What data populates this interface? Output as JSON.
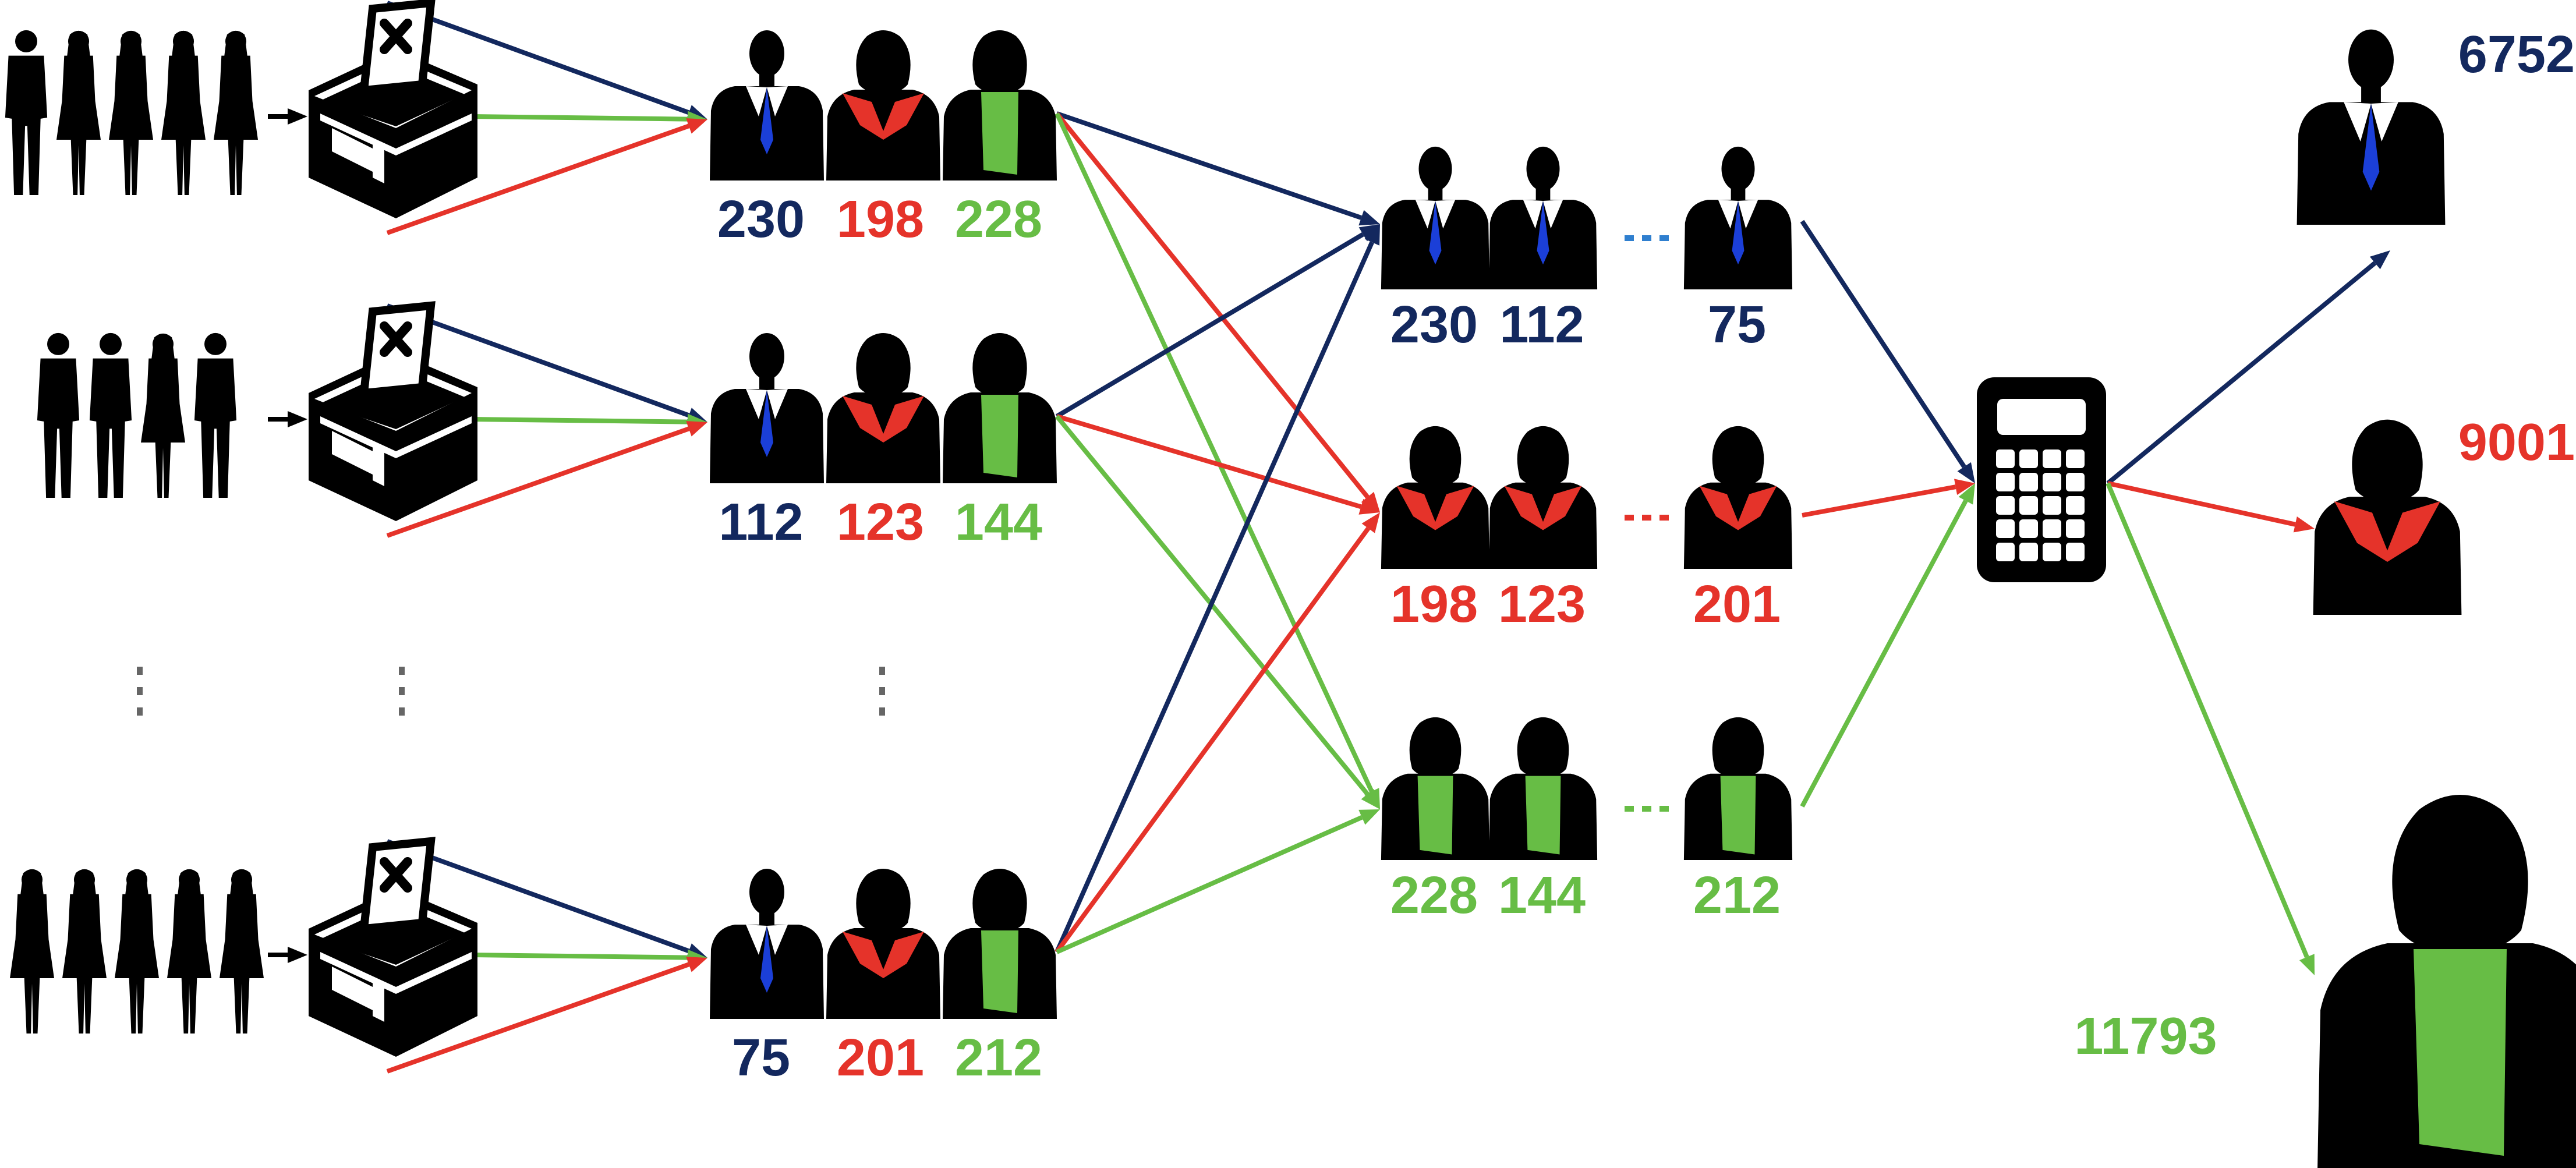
{
  "colors": {
    "blue": "#13285e",
    "red": "#e5332a",
    "green": "#67bd45",
    "tie_blue": "#1b3fd8",
    "silhouette": "#000000",
    "dots_gray": "#666666",
    "dots_blue": "#2f7fcf"
  },
  "icons": {
    "voters": "people-silhouette-icon",
    "ballot_box": "ballot-box-icon",
    "candidate_male": "man-with-blue-tie-icon",
    "candidate_female": "woman-with-red-collar-icon",
    "candidate_green": "woman-with-green-scarf-icon",
    "calculator": "calculator-icon"
  },
  "stations": [
    {
      "blue": "230",
      "red": "198",
      "green": "228"
    },
    {
      "blue": "112",
      "red": "123",
      "green": "144"
    },
    {
      "blue": "75",
      "red": "201",
      "green": "212"
    }
  ],
  "aggregated": {
    "blue": [
      "230",
      "112",
      "75"
    ],
    "red": [
      "198",
      "123",
      "201"
    ],
    "green": [
      "228",
      "144",
      "212"
    ]
  },
  "totals": {
    "blue": "6752",
    "red": "9001",
    "green": "11793"
  },
  "ellipsis_glyph": "⋮",
  "hellip_glyph": "···"
}
